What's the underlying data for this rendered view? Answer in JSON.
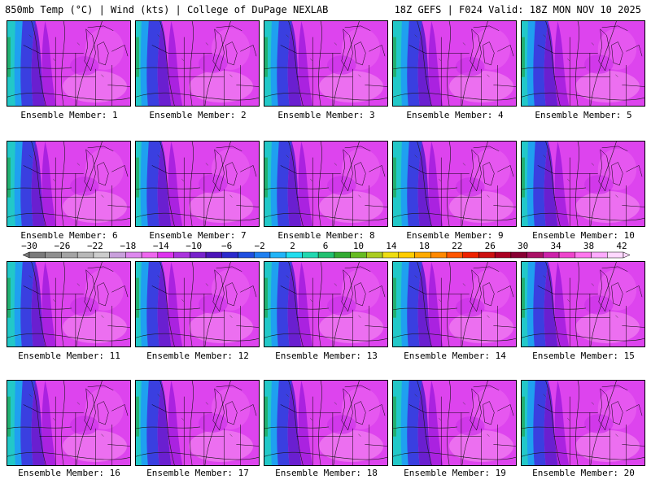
{
  "header": {
    "left": "850mb Temp (°C) | Wind (kts) | College of DuPage NEXLAB",
    "right": "18Z GEFS | F024 Valid: 18Z MON NOV 10 2025"
  },
  "colorbar": {
    "labels": [
      "−30",
      "−26",
      "−22",
      "−18",
      "−14",
      "−10",
      "−6",
      "−2",
      "2",
      "6",
      "10",
      "14",
      "18",
      "22",
      "26",
      "30",
      "34",
      "38",
      "42"
    ],
    "colors": [
      "#7a7a7a",
      "#8f8f8f",
      "#a4a4a4",
      "#b8b8b8",
      "#cccccc",
      "#c9a0dc",
      "#dd88ee",
      "#ee66ee",
      "#dd33ee",
      "#aa33dd",
      "#7722cc",
      "#4b14b8",
      "#2a2acc",
      "#1f4fe0",
      "#1e7ff0",
      "#22b4f8",
      "#22ddee",
      "#22d8b0",
      "#22c070",
      "#33aa33",
      "#66bb22",
      "#aacc22",
      "#eedd11",
      "#ffcc00",
      "#ffaa00",
      "#ff8800",
      "#ff5500",
      "#ee2200",
      "#cc1111",
      "#aa0022",
      "#880033",
      "#aa1166",
      "#cc22aa",
      "#ee44cc",
      "#ff77ee",
      "#ffaaff",
      "#ffd8ff"
    ]
  },
  "panels": [
    {
      "label": "Ensemble Member: 1"
    },
    {
      "label": "Ensemble Member: 2"
    },
    {
      "label": "Ensemble Member: 3"
    },
    {
      "label": "Ensemble Member: 4"
    },
    {
      "label": "Ensemble Member: 5"
    },
    {
      "label": "Ensemble Member: 6"
    },
    {
      "label": "Ensemble Member: 7"
    },
    {
      "label": "Ensemble Member: 8"
    },
    {
      "label": "Ensemble Member: 9"
    },
    {
      "label": "Ensemble Member: 10"
    },
    {
      "label": "Ensemble Member: 11"
    },
    {
      "label": "Ensemble Member: 12"
    },
    {
      "label": "Ensemble Member: 13"
    },
    {
      "label": "Ensemble Member: 14"
    },
    {
      "label": "Ensemble Member: 15"
    },
    {
      "label": "Ensemble Member: 16"
    },
    {
      "label": "Ensemble Member: 17"
    },
    {
      "label": "Ensemble Member: 18"
    },
    {
      "label": "Ensemble Member: 19"
    },
    {
      "label": "Ensemble Member: 20"
    }
  ]
}
